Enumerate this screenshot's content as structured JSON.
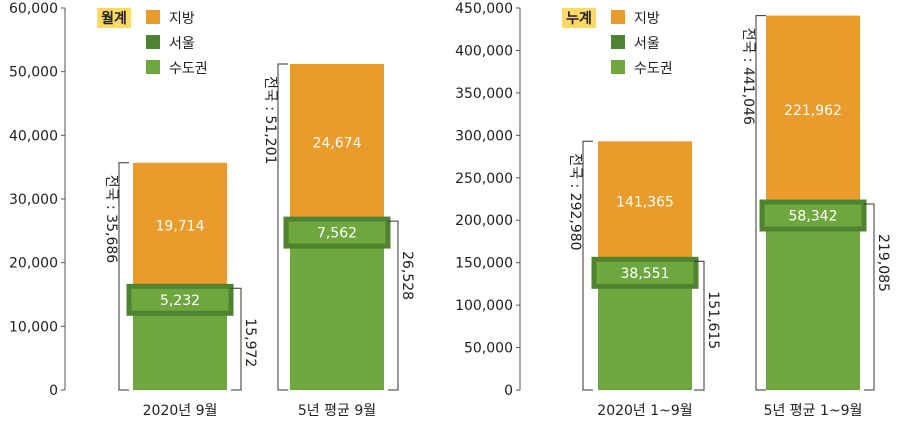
{
  "colors": {
    "jibang": "#e99b2b",
    "seoul": "#4f8231",
    "sudogwon": "#6fa73f",
    "text_dark": "#222222",
    "text_light": "#ffffff",
    "bracket": "#333333",
    "badge": "#ffd966"
  },
  "chart_data": [
    {
      "type": "bar",
      "badge": "월계",
      "categories": [
        "2020년 9월",
        "5년 평균 9월"
      ],
      "series": [
        {
          "name": "지방",
          "values": [
            19714,
            24674
          ]
        },
        {
          "name": "서울",
          "values": [
            5232,
            7562
          ]
        },
        {
          "name": "수도권",
          "values": [
            15972,
            26528
          ]
        }
      ],
      "totals": [
        35686,
        51201
      ],
      "total_labels": [
        "전국 : 35,686",
        "전국 : 51,201"
      ],
      "jibang_labels": [
        "19,714",
        "24,674"
      ],
      "seoul_labels": [
        "5,232",
        "7,562"
      ],
      "sudogwon_labels": [
        "15,972",
        "26,528"
      ],
      "yticks": [
        "0",
        "10,000",
        "20,000",
        "30,000",
        "40,000",
        "50,000",
        "60,000"
      ],
      "ylim": [
        0,
        60000
      ],
      "legend": [
        "지방",
        "서울",
        "수도권"
      ]
    },
    {
      "type": "bar",
      "badge": "누계",
      "categories": [
        "2020년 1~9월",
        "5년 평균 1~9월"
      ],
      "series": [
        {
          "name": "지방",
          "values": [
            141365,
            221962
          ]
        },
        {
          "name": "서울",
          "values": [
            38551,
            58342
          ]
        },
        {
          "name": "수도권",
          "values": [
            151615,
            219085
          ]
        }
      ],
      "totals": [
        292980,
        441046
      ],
      "total_labels": [
        "전국 : 292,980",
        "전국 : 441,046"
      ],
      "jibang_labels": [
        "141,365",
        "221,962"
      ],
      "seoul_labels": [
        "38,551",
        "58,342"
      ],
      "sudogwon_labels": [
        "151,615",
        "219,085"
      ],
      "yticks": [
        "0",
        "50,000",
        "100,000",
        "150,000",
        "200,000",
        "250,000",
        "300,000",
        "350,000",
        "400,000",
        "450,000"
      ],
      "ylim": [
        0,
        450000
      ],
      "legend": [
        "지방",
        "서울",
        "수도권"
      ]
    }
  ]
}
